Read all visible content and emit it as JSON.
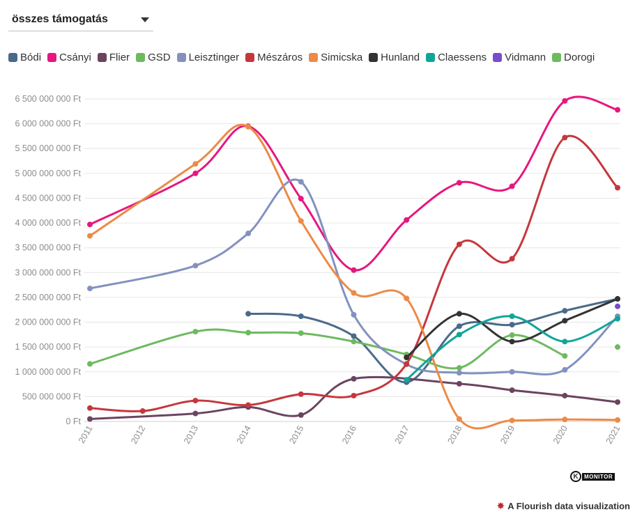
{
  "dropdown": {
    "selected": "összes támogatás"
  },
  "logo": {
    "letter": "K",
    "text": "MONITOR"
  },
  "credit": {
    "text": "A Flourish data visualization"
  },
  "chart_data": {
    "type": "line",
    "x": [
      "2011",
      "2012",
      "2013",
      "2014",
      "2015",
      "2016",
      "2017",
      "2018",
      "2019",
      "2020",
      "2021"
    ],
    "ylim": [
      0,
      6500000000
    ],
    "yticks": [
      0,
      500000000,
      1000000000,
      1500000000,
      2000000000,
      2500000000,
      3000000000,
      3500000000,
      4000000000,
      4500000000,
      5000000000,
      5500000000,
      6000000000,
      6500000000
    ],
    "ytick_labels": [
      "0 Ft",
      "500 000 000 Ft",
      "1 000 000 000 Ft",
      "1 500 000 000 Ft",
      "2 000 000 000 Ft",
      "2 500 000 000 Ft",
      "3 000 000 000 Ft",
      "3 500 000 000 Ft",
      "4 000 000 000 Ft",
      "4 500 000 000 Ft",
      "5 000 000 000 Ft",
      "5 500 000 000 Ft",
      "6 000 000 000 Ft",
      "6 500 000 000 Ft"
    ],
    "grid": true,
    "legend_position": "top",
    "series": [
      {
        "name": "Bódi",
        "color": "#4a6a8a",
        "values": [
          null,
          null,
          null,
          2170000000,
          2120000000,
          1720000000,
          790000000,
          1920000000,
          1950000000,
          2230000000,
          2470000000
        ]
      },
      {
        "name": "Csányi",
        "color": "#e6177f",
        "values": [
          3970000000,
          null,
          5000000000,
          5950000000,
          4490000000,
          3050000000,
          4060000000,
          4810000000,
          4740000000,
          6460000000,
          6280000000
        ]
      },
      {
        "name": "Flier",
        "color": "#6b4460",
        "values": [
          50000000,
          null,
          160000000,
          290000000,
          130000000,
          860000000,
          null,
          760000000,
          630000000,
          520000000,
          390000000
        ]
      },
      {
        "name": "GSD",
        "color": "#6dba5f",
        "values": [
          1160000000,
          null,
          1810000000,
          1790000000,
          1780000000,
          1610000000,
          1350000000,
          1080000000,
          1740000000,
          1320000000,
          null
        ]
      },
      {
        "name": "Leisztinger",
        "color": "#8391bf",
        "values": [
          2680000000,
          null,
          3140000000,
          3790000000,
          4830000000,
          2150000000,
          1150000000,
          980000000,
          1000000000,
          1040000000,
          2120000000
        ]
      },
      {
        "name": "Mészáros",
        "color": "#c5373c",
        "values": [
          270000000,
          210000000,
          420000000,
          330000000,
          550000000,
          520000000,
          1160000000,
          3570000000,
          3280000000,
          5720000000,
          4710000000
        ]
      },
      {
        "name": "Simicska",
        "color": "#ec8a47",
        "values": [
          3740000000,
          null,
          5190000000,
          5940000000,
          4040000000,
          2590000000,
          2480000000,
          50000000,
          20000000,
          40000000,
          30000000
        ]
      },
      {
        "name": "Hunland",
        "color": "#333333",
        "values": [
          null,
          null,
          null,
          null,
          null,
          null,
          1290000000,
          2170000000,
          1610000000,
          2030000000,
          2470000000
        ]
      },
      {
        "name": "Claessens",
        "color": "#11a49a",
        "values": [
          null,
          null,
          null,
          null,
          null,
          null,
          840000000,
          1750000000,
          2120000000,
          1610000000,
          2070000000
        ]
      },
      {
        "name": "Vidmann",
        "color": "#7b4ccd",
        "values": [
          null,
          null,
          null,
          null,
          null,
          null,
          null,
          null,
          null,
          null,
          2320000000
        ]
      },
      {
        "name": "Dorogi",
        "color": "#6dba5f",
        "values": [
          null,
          null,
          null,
          null,
          null,
          null,
          null,
          null,
          null,
          null,
          1500000000
        ]
      }
    ]
  }
}
